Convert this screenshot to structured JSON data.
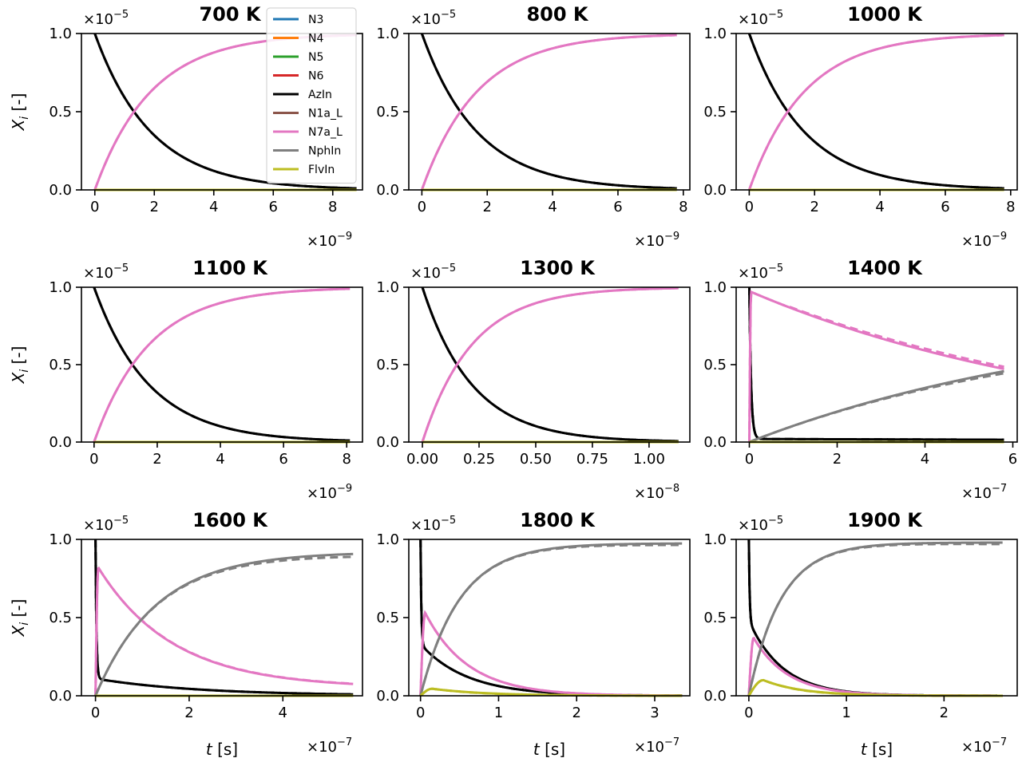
{
  "colors": {
    "N3": "#1f77b4",
    "N4": "#ff7f0e",
    "N5": "#2ca02c",
    "N6": "#d62728",
    "AzIn": "#000000",
    "N1a_L": "#8c564b",
    "N7a_L": "#e377c2",
    "NphIn": "#7f7f7f",
    "FlvIn": "#bcbd22"
  },
  "legend": {
    "placement": "top-right of first panel",
    "entries": [
      "N3",
      "N4",
      "N5",
      "N6",
      "AzIn",
      "N1a_L",
      "N7a_L",
      "NphIn",
      "FlvIn"
    ]
  },
  "chart_data": [
    {
      "type": "line",
      "title": "700 K",
      "ylabel_base": "X",
      "ylabel_sub": "i",
      "ylabel_unit": " [-]",
      "y_exponent_label": "×10",
      "y_exponent": "−5",
      "x_exponent_label": "×10",
      "x_exponent": "−9",
      "xlim": [
        -0.45,
        9.0
      ],
      "ylim": [
        0,
        1.0
      ],
      "xticks": [
        0,
        2,
        4,
        6,
        8
      ],
      "xtick_labels": [
        "0",
        "2",
        "4",
        "6",
        "8"
      ],
      "yticks": [
        0,
        0.5,
        1.0
      ],
      "ytick_labels": [
        "0.0",
        "0.5",
        "1.0"
      ],
      "xlabel": "",
      "series": [
        {
          "name": "AzIn",
          "kind": "exp_decay",
          "y0": 1.0,
          "tau": 1.9,
          "floor": 0,
          "dashed_scale": 1.0
        },
        {
          "name": "N7a_L",
          "kind": "exp_rise",
          "amp": 1.0,
          "tau": 1.9
        },
        {
          "name": "FlvIn",
          "kind": "flat",
          "value": 0.0
        }
      ],
      "x_end": 8.8
    },
    {
      "type": "line",
      "title": "800 K",
      "y_exponent_label": "×10",
      "y_exponent": "−5",
      "x_exponent_label": "×10",
      "x_exponent": "−9",
      "xlim": [
        -0.4,
        8.2
      ],
      "ylim": [
        0,
        1.0
      ],
      "xticks": [
        0,
        2,
        4,
        6,
        8
      ],
      "xtick_labels": [
        "0",
        "2",
        "4",
        "6",
        "8"
      ],
      "yticks": [
        0,
        0.5,
        1.0
      ],
      "ytick_labels": [
        "0.0",
        "0.5",
        "1.0"
      ],
      "xlabel": "",
      "series": [
        {
          "name": "AzIn",
          "kind": "exp_decay",
          "y0": 1.0,
          "tau": 1.7,
          "floor": 0
        },
        {
          "name": "N7a_L",
          "kind": "exp_rise",
          "amp": 1.0,
          "tau": 1.7
        },
        {
          "name": "FlvIn",
          "kind": "flat",
          "value": 0.0
        }
      ],
      "x_end": 7.8
    },
    {
      "type": "line",
      "title": "1000 K",
      "y_exponent_label": "×10",
      "y_exponent": "−5",
      "x_exponent_label": "×10",
      "x_exponent": "−9",
      "xlim": [
        -0.4,
        8.2
      ],
      "ylim": [
        0,
        1.0
      ],
      "xticks": [
        0,
        2,
        4,
        6,
        8
      ],
      "xtick_labels": [
        "0",
        "2",
        "4",
        "6",
        "8"
      ],
      "yticks": [
        0,
        0.5,
        1.0
      ],
      "ytick_labels": [
        "0.0",
        "0.5",
        "1.0"
      ],
      "xlabel": "",
      "series": [
        {
          "name": "AzIn",
          "kind": "exp_decay",
          "y0": 1.0,
          "tau": 1.7,
          "floor": 0
        },
        {
          "name": "N7a_L",
          "kind": "exp_rise",
          "amp": 1.0,
          "tau": 1.7
        },
        {
          "name": "FlvIn",
          "kind": "flat",
          "value": 0.0
        }
      ],
      "x_end": 7.8
    },
    {
      "type": "line",
      "title": "1100 K",
      "ylabel_base": "X",
      "ylabel_sub": "i",
      "ylabel_unit": " [-]",
      "y_exponent_label": "×10",
      "y_exponent": "−5",
      "x_exponent_label": "×10",
      "x_exponent": "−9",
      "xlim": [
        -0.4,
        8.5
      ],
      "ylim": [
        0,
        1.0
      ],
      "xticks": [
        0,
        2,
        4,
        6,
        8
      ],
      "xtick_labels": [
        "0",
        "2",
        "4",
        "6",
        "8"
      ],
      "yticks": [
        0,
        0.5,
        1.0
      ],
      "ytick_labels": [
        "0.0",
        "0.5",
        "1.0"
      ],
      "xlabel": "",
      "series": [
        {
          "name": "AzIn",
          "kind": "exp_decay",
          "y0": 1.0,
          "tau": 1.75,
          "floor": 0
        },
        {
          "name": "N7a_L",
          "kind": "exp_rise",
          "amp": 1.0,
          "tau": 1.75
        },
        {
          "name": "FlvIn",
          "kind": "flat",
          "value": 0.0
        }
      ],
      "x_end": 8.1
    },
    {
      "type": "line",
      "title": "1300 K",
      "y_exponent_label": "×10",
      "y_exponent": "−5",
      "x_exponent_label": "×10",
      "x_exponent": "−8",
      "xlim": [
        -0.06,
        1.18
      ],
      "ylim": [
        0,
        1.0
      ],
      "xticks": [
        0,
        0.25,
        0.5,
        0.75,
        1.0
      ],
      "xtick_labels": [
        "0.00",
        "0.25",
        "0.50",
        "0.75",
        "1.00"
      ],
      "yticks": [
        0,
        0.5,
        1.0
      ],
      "ytick_labels": [
        "0.0",
        "0.5",
        "1.0"
      ],
      "xlabel": "",
      "series": [
        {
          "name": "AzIn",
          "kind": "exp_decay",
          "y0": 1.0,
          "tau": 0.22,
          "floor": 0
        },
        {
          "name": "N7a_L",
          "kind": "exp_rise",
          "amp": 1.0,
          "tau": 0.22
        },
        {
          "name": "FlvIn",
          "kind": "flat",
          "value": 0.0
        }
      ],
      "x_end": 1.13
    },
    {
      "type": "line",
      "title": "1400 K",
      "y_exponent_label": "×10",
      "y_exponent": "−5",
      "x_exponent_label": "×10",
      "x_exponent": "−7",
      "xlim": [
        -0.3,
        6.1
      ],
      "ylim": [
        0,
        1.0
      ],
      "xticks": [
        0,
        2,
        4,
        6
      ],
      "xtick_labels": [
        "0",
        "2",
        "4",
        "6"
      ],
      "yticks": [
        0,
        0.5,
        1.0
      ],
      "ytick_labels": [
        "0.0",
        "0.5",
        "1.0"
      ],
      "xlabel": "",
      "series": [
        {
          "name": "AzIn",
          "kind": "fast_decay_floor",
          "y0": 1.0,
          "tau": 0.04,
          "floor": 0.02,
          "floor_tau": 20
        },
        {
          "name": "N7a_L",
          "kind": "peak_decay",
          "peak": 0.97,
          "t_rise": 0.04,
          "tau": 8.0,
          "dashed_scale": 1.03
        },
        {
          "name": "NphIn",
          "kind": "slow_rise",
          "amp": 0.88,
          "tau": 7.9,
          "dashed_scale": 0.97
        },
        {
          "name": "FlvIn",
          "kind": "flat",
          "value": 0.0
        }
      ],
      "x_end": 5.8
    },
    {
      "type": "line",
      "title": "1600 K",
      "ylabel_base": "X",
      "ylabel_sub": "i",
      "ylabel_unit": " [-]",
      "y_exponent_label": "×10",
      "y_exponent": "−5",
      "x_exponent_label": "×10",
      "x_exponent": "−7",
      "xlim": [
        -0.3,
        5.7
      ],
      "ylim": [
        0,
        1.0
      ],
      "xticks": [
        0,
        2,
        4
      ],
      "xtick_labels": [
        "0",
        "2",
        "4"
      ],
      "yticks": [
        0,
        0.5,
        1.0
      ],
      "ytick_labels": [
        "0.0",
        "0.5",
        "1.0"
      ],
      "xlabel": "t [s]",
      "series": [
        {
          "name": "AzIn",
          "kind": "fast_decay_floor",
          "y0": 1.0,
          "tau": 0.02,
          "floor": 0.11,
          "floor_tau": 2.2
        },
        {
          "name": "N7a_L",
          "kind": "peak_decay",
          "peak": 0.82,
          "t_rise": 0.06,
          "tau": 1.6,
          "tail": 0.05,
          "dashed_scale": 1.02
        },
        {
          "name": "NphIn",
          "kind": "slow_rise",
          "amp": 0.92,
          "tau": 1.3,
          "dashed_scale": 0.98
        },
        {
          "name": "FlvIn",
          "kind": "flat",
          "value": 0.0
        }
      ],
      "x_end": 5.5
    },
    {
      "type": "line",
      "title": "1800 K",
      "y_exponent_label": "×10",
      "y_exponent": "−5",
      "x_exponent_label": "×10",
      "x_exponent": "−7",
      "xlim": [
        -0.15,
        3.45
      ],
      "ylim": [
        0,
        1.0
      ],
      "xticks": [
        0,
        1,
        2,
        3
      ],
      "xtick_labels": [
        "0",
        "1",
        "2",
        "3"
      ],
      "yticks": [
        0,
        0.5,
        1.0
      ],
      "ytick_labels": [
        "0.0",
        "0.5",
        "1.0"
      ],
      "xlabel": "t [s]",
      "series": [
        {
          "name": "AzIn",
          "kind": "fast_decay_floor",
          "y0": 1.0,
          "tau": 0.01,
          "floor": 0.33,
          "floor_tau": 0.6
        },
        {
          "name": "N7a_L",
          "kind": "peak_decay",
          "peak": 0.53,
          "t_rise": 0.06,
          "tau": 0.55,
          "dashed_scale": 1.02
        },
        {
          "name": "NphIn",
          "kind": "slow_rise",
          "amp": 0.975,
          "tau": 0.5,
          "dashed_scale": 0.99
        },
        {
          "name": "FlvIn",
          "kind": "peak_decay",
          "peak": 0.045,
          "t_rise": 0.15,
          "tau": 0.7,
          "dashed_scale": 0.8
        }
      ],
      "x_end": 3.35
    },
    {
      "type": "line",
      "title": "1900 K",
      "y_exponent_label": "×10",
      "y_exponent": "−5",
      "x_exponent_label": "×10",
      "x_exponent": "−7",
      "xlim": [
        -0.13,
        2.75
      ],
      "ylim": [
        0,
        1.0
      ],
      "xticks": [
        0,
        1,
        2
      ],
      "xtick_labels": [
        "0",
        "1",
        "2"
      ],
      "yticks": [
        0,
        0.5,
        1.0
      ],
      "ytick_labels": [
        "0.0",
        "0.5",
        "1.0"
      ],
      "xlabel": "t [s]",
      "series": [
        {
          "name": "AzIn",
          "kind": "fast_decay_floor",
          "y0": 1.0,
          "tau": 0.008,
          "floor": 0.48,
          "floor_tau": 0.35
        },
        {
          "name": "N7a_L",
          "kind": "peak_decay",
          "peak": 0.37,
          "t_rise": 0.05,
          "tau": 0.35,
          "dashed_scale": 1.02
        },
        {
          "name": "NphIn",
          "kind": "slow_rise",
          "amp": 0.98,
          "tau": 0.33,
          "dashed_scale": 0.99
        },
        {
          "name": "FlvIn",
          "kind": "peak_decay",
          "peak": 0.1,
          "t_rise": 0.15,
          "tau": 0.4,
          "dashed_scale": 0.85
        }
      ],
      "x_end": 2.6
    }
  ]
}
